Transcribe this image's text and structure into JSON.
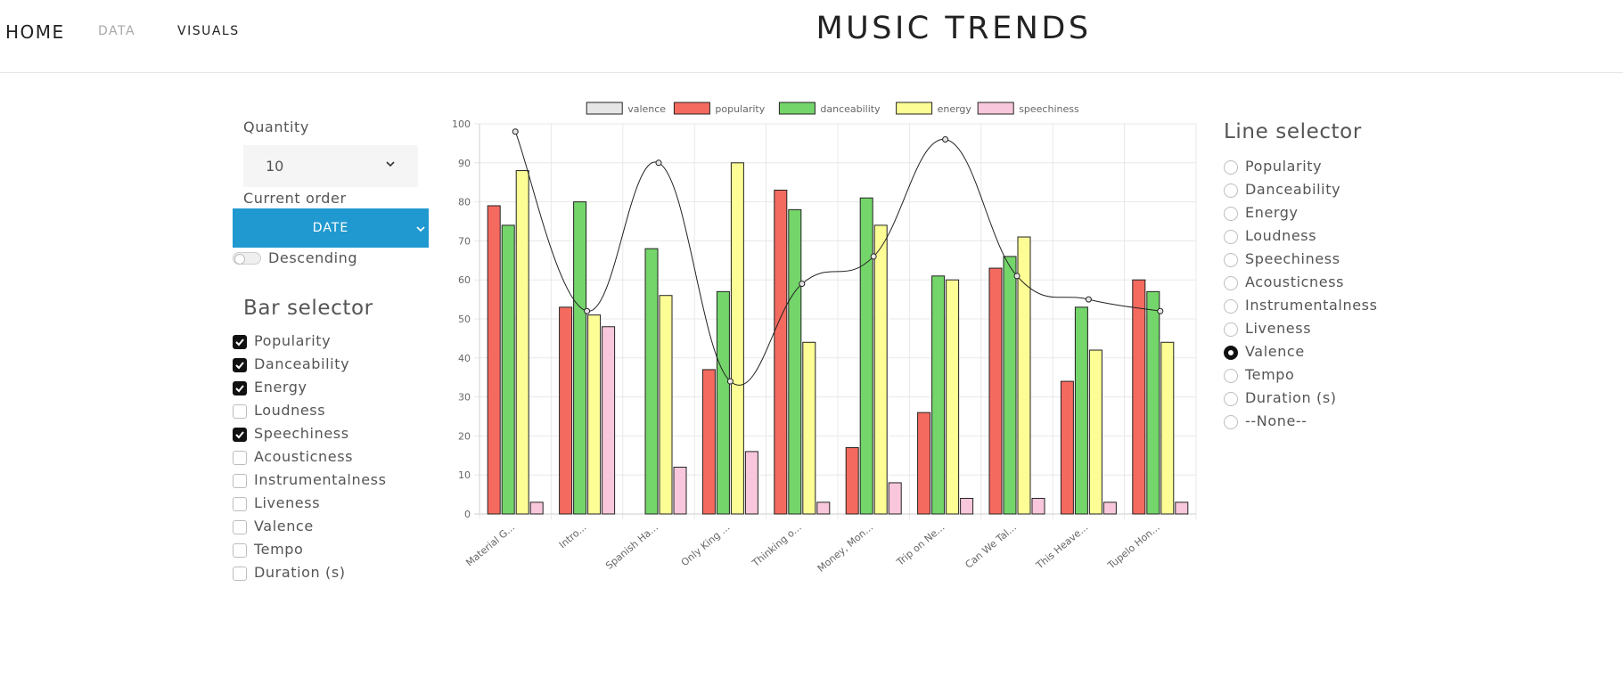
{
  "nav": {
    "home": "HOME",
    "data": "DATA",
    "visuals": "VISUALS"
  },
  "title": "MUSIC TRENDS",
  "controls": {
    "quantity_label": "Quantity",
    "quantity_value": "10",
    "order_label": "Current order",
    "order_value": "DATE",
    "descending_label": "Descending",
    "descending_on": false
  },
  "bar_selector": {
    "title": "Bar selector",
    "options": [
      {
        "label": "Popularity",
        "checked": true
      },
      {
        "label": "Danceability",
        "checked": true
      },
      {
        "label": "Energy",
        "checked": true
      },
      {
        "label": "Loudness",
        "checked": false
      },
      {
        "label": "Speechiness",
        "checked": true
      },
      {
        "label": "Acousticness",
        "checked": false
      },
      {
        "label": "Instrumentalness",
        "checked": false
      },
      {
        "label": "Liveness",
        "checked": false
      },
      {
        "label": "Valence",
        "checked": false
      },
      {
        "label": "Tempo",
        "checked": false
      },
      {
        "label": "Duration (s)",
        "checked": false
      }
    ]
  },
  "line_selector": {
    "title": "Line selector",
    "options": [
      {
        "label": "Popularity",
        "selected": false
      },
      {
        "label": "Danceability",
        "selected": false
      },
      {
        "label": "Energy",
        "selected": false
      },
      {
        "label": "Loudness",
        "selected": false
      },
      {
        "label": "Speechiness",
        "selected": false
      },
      {
        "label": "Acousticness",
        "selected": false
      },
      {
        "label": "Instrumentalness",
        "selected": false
      },
      {
        "label": "Liveness",
        "selected": false
      },
      {
        "label": "Valence",
        "selected": true
      },
      {
        "label": "Tempo",
        "selected": false
      },
      {
        "label": "Duration (s)",
        "selected": false
      },
      {
        "label": "--None--",
        "selected": false
      }
    ]
  },
  "chart_data": {
    "type": "bar",
    "categories": [
      "Material G...",
      "Intro...",
      "Spanish Ha...",
      "Only King ...",
      "Thinking o...",
      "Money, Mon...",
      "Trip on Ne...",
      "Can We Tal...",
      "This Heave...",
      "Tupelo Hon..."
    ],
    "ylim": [
      0,
      100
    ],
    "yticks": [
      0,
      10,
      20,
      30,
      40,
      50,
      60,
      70,
      80,
      90,
      100
    ],
    "grid": true,
    "legend_position": "top",
    "series": [
      {
        "name": "popularity",
        "color": "#f56a5f",
        "values": [
          79,
          53,
          0,
          37,
          83,
          17,
          26,
          63,
          34,
          60
        ]
      },
      {
        "name": "danceability",
        "color": "#74d56a",
        "values": [
          74,
          80,
          68,
          57,
          78,
          81,
          61,
          66,
          53,
          57
        ]
      },
      {
        "name": "energy",
        "color": "#fdfd96",
        "values": [
          88,
          51,
          56,
          90,
          44,
          74,
          60,
          71,
          42,
          44
        ]
      },
      {
        "name": "speechiness",
        "color": "#f8c7dc",
        "values": [
          3,
          48,
          12,
          16,
          3,
          8,
          4,
          4,
          3,
          3
        ]
      }
    ],
    "line": {
      "name": "valence",
      "color": "#e6e6e6",
      "values": [
        98,
        52,
        90,
        34,
        59,
        66,
        96,
        61,
        55,
        52
      ]
    }
  }
}
